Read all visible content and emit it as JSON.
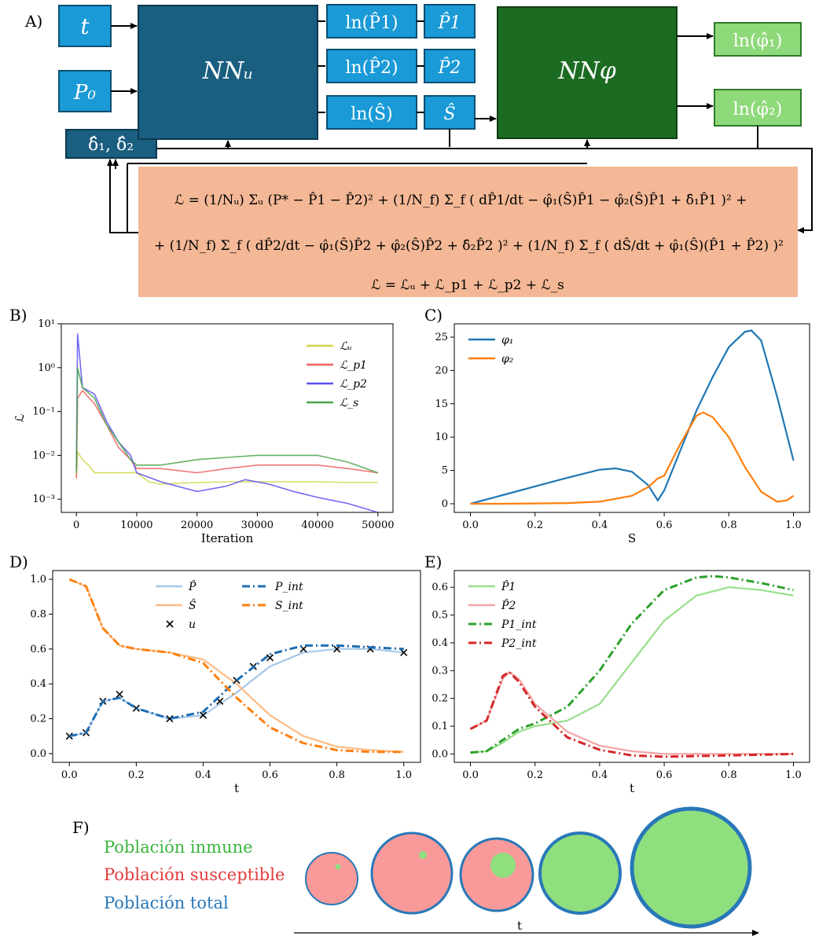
{
  "panels": {
    "A": "A)",
    "B": "B)",
    "C": "C)",
    "D": "D)",
    "E": "E)",
    "F": "F)"
  },
  "diagram": {
    "inputs": {
      "t": "t",
      "p0": "P₀",
      "delta": "δ̂₁, δ̂₂"
    },
    "nn_u": "NNᵤ",
    "nn_phi": "NNφ",
    "outputs_u": [
      "ln(P̂1)",
      "P̂1",
      "ln(P̂2)",
      "P̂2",
      "ln(Ŝ)",
      "Ŝ"
    ],
    "outputs_phi": [
      "ln(φ̂₁)",
      "ln(φ̂₂)"
    ],
    "loss_lines": [
      "ℒ = (1/Nᵤ) Σᵤ (P* − P̂1 − P̂2)² + (1/N_f) Σ_f ( dP̂1/dt − φ̂₁(Ŝ)P̂1 − φ̂₂(Ŝ)P̂1 + δ̂₁P̂1 )² +",
      "+ (1/N_f) Σ_f ( dP̂2/dt − φ̂₁(Ŝ)P̂2 + φ̂₂(Ŝ)P̂2 + δ̂₂P̂2 )² + (1/N_f) Σ_f ( dŜ/dt + φ̂₁(Ŝ)(P̂1 + P̂2) )²",
      "ℒ = ℒᵤ + ℒ_p1 + ℒ_p2 + ℒ_s"
    ],
    "colors": {
      "input_blue": "#1a9ad6",
      "nn_u": "#1a5e80",
      "nn_phi": "#1c6b22",
      "out_green": "#8ed97a",
      "loss_bg": "#f4b896"
    }
  },
  "chart_data": [
    {
      "panel": "B",
      "type": "line",
      "ylabel": "ℒ",
      "xlabel": "Iteration",
      "yscale": "log",
      "ylim": [
        0.0005,
        10
      ],
      "xlim": [
        -2500,
        52500
      ],
      "x_ticks": [
        "0",
        "10000",
        "20000",
        "30000",
        "40000",
        "50000"
      ],
      "y_ticks": [
        "10¹",
        "10⁰",
        "10⁻¹",
        "10⁻²",
        "10⁻³"
      ],
      "legend_position": "top-right",
      "series": [
        {
          "name": "ℒᵤ",
          "color": "#cfd64a",
          "x": [
            0,
            200,
            1000,
            2000,
            3000,
            4000,
            10000,
            12000,
            14000,
            20000,
            25000,
            30000,
            35000,
            40000,
            45000,
            50000
          ],
          "y": [
            0.003,
            0.012,
            0.008,
            0.006,
            0.004,
            0.004,
            0.004,
            0.0025,
            0.0022,
            0.0024,
            0.0025,
            0.0025,
            0.0025,
            0.0025,
            0.0024,
            0.0024
          ]
        },
        {
          "name": "ℒ_p1",
          "color": "#f06060",
          "x": [
            0,
            200,
            1000,
            3000,
            5000,
            7000,
            9000,
            10000,
            14000,
            20000,
            25000,
            30000,
            35000,
            40000,
            45000,
            50000
          ],
          "y": [
            0.003,
            0.2,
            0.3,
            0.15,
            0.05,
            0.015,
            0.008,
            0.005,
            0.005,
            0.004,
            0.005,
            0.006,
            0.006,
            0.006,
            0.005,
            0.004
          ]
        },
        {
          "name": "ℒ_p2",
          "color": "#5a50f0",
          "x": [
            0,
            200,
            1000,
            3000,
            5000,
            7000,
            9000,
            10000,
            14000,
            20000,
            25000,
            28000,
            32000,
            36000,
            40000,
            45000,
            50000
          ],
          "y": [
            0.005,
            6,
            0.35,
            0.25,
            0.06,
            0.02,
            0.01,
            0.004,
            0.0025,
            0.0015,
            0.002,
            0.0028,
            0.0022,
            0.0015,
            0.0011,
            0.0008,
            0.0005
          ]
        },
        {
          "name": "ℒ_s",
          "color": "#4aa54a",
          "x": [
            0,
            200,
            1000,
            3000,
            5000,
            7000,
            9000,
            10000,
            14000,
            20000,
            25000,
            30000,
            35000,
            40000,
            45000,
            50000
          ],
          "y": [
            0.004,
            1.0,
            0.35,
            0.2,
            0.05,
            0.02,
            0.008,
            0.006,
            0.006,
            0.008,
            0.009,
            0.01,
            0.01,
            0.01,
            0.007,
            0.004
          ]
        }
      ]
    },
    {
      "panel": "C",
      "type": "line",
      "xlabel": "S",
      "xlim": [
        -0.05,
        1.05
      ],
      "ylim": [
        -1.3,
        27
      ],
      "x_ticks": [
        "0.0",
        "0.2",
        "0.4",
        "0.6",
        "0.8",
        "1.0"
      ],
      "y_ticks": [
        "0",
        "5",
        "10",
        "15",
        "20",
        "25"
      ],
      "legend_position": "top-left",
      "series": [
        {
          "name": "φ₁",
          "color": "#1f77b4",
          "x": [
            0.0,
            0.1,
            0.2,
            0.3,
            0.4,
            0.45,
            0.5,
            0.55,
            0.58,
            0.6,
            0.65,
            0.7,
            0.75,
            0.8,
            0.85,
            0.87,
            0.9,
            0.95,
            1.0
          ],
          "y": [
            0.0,
            1.3,
            2.6,
            3.9,
            5.1,
            5.3,
            4.8,
            2.8,
            0.5,
            2.0,
            8.0,
            14.0,
            19.0,
            23.5,
            25.8,
            26.0,
            24.5,
            16.0,
            6.5
          ]
        },
        {
          "name": "φ₂",
          "color": "#ff7f0e",
          "x": [
            0.0,
            0.1,
            0.2,
            0.3,
            0.4,
            0.5,
            0.55,
            0.58,
            0.6,
            0.65,
            0.7,
            0.72,
            0.75,
            0.8,
            0.85,
            0.9,
            0.95,
            0.98,
            1.0
          ],
          "y": [
            0.0,
            0.0,
            0.05,
            0.1,
            0.3,
            1.2,
            2.5,
            3.8,
            4.2,
            9.0,
            13.2,
            13.7,
            13.0,
            10.0,
            5.5,
            1.8,
            0.3,
            0.5,
            1.2
          ]
        }
      ]
    },
    {
      "panel": "D",
      "type": "line",
      "xlabel": "t",
      "xlim": [
        -0.05,
        1.05
      ],
      "ylim": [
        -0.05,
        1.05
      ],
      "x_ticks": [
        "0.0",
        "0.2",
        "0.4",
        "0.6",
        "0.8",
        "1.0"
      ],
      "y_ticks": [
        "0.0",
        "0.2",
        "0.4",
        "0.6",
        "0.8",
        "1.0"
      ],
      "legend_position": "top-center",
      "series": [
        {
          "name": "P̂",
          "color": "#a6c8ea",
          "x": [
            0.0,
            0.05,
            0.1,
            0.15,
            0.2,
            0.3,
            0.4,
            0.5,
            0.6,
            0.7,
            0.8,
            0.9,
            1.0
          ],
          "y": [
            0.1,
            0.12,
            0.3,
            0.32,
            0.26,
            0.2,
            0.22,
            0.35,
            0.5,
            0.58,
            0.6,
            0.6,
            0.58
          ]
        },
        {
          "name": "Ŝ",
          "color": "#fdbb84",
          "x": [
            0.0,
            0.05,
            0.1,
            0.15,
            0.2,
            0.3,
            0.4,
            0.5,
            0.6,
            0.7,
            0.8,
            0.9,
            1.0
          ],
          "y": [
            1.0,
            0.96,
            0.72,
            0.62,
            0.6,
            0.58,
            0.54,
            0.4,
            0.22,
            0.1,
            0.04,
            0.02,
            0.01
          ]
        },
        {
          "name": "u",
          "color": "#000000",
          "x": [
            0.0,
            0.05,
            0.1,
            0.15,
            0.2,
            0.3,
            0.4,
            0.45,
            0.5,
            0.55,
            0.6,
            0.7,
            0.8,
            0.9,
            1.0
          ],
          "y": [
            0.1,
            0.12,
            0.3,
            0.34,
            0.26,
            0.2,
            0.22,
            0.3,
            0.42,
            0.5,
            0.55,
            0.6,
            0.6,
            0.6,
            0.58
          ]
        },
        {
          "name": "P_int",
          "color": "#1f6fb4",
          "x": [
            0.0,
            0.05,
            0.1,
            0.15,
            0.2,
            0.3,
            0.4,
            0.5,
            0.6,
            0.7,
            0.8,
            0.9,
            1.0
          ],
          "y": [
            0.1,
            0.12,
            0.3,
            0.32,
            0.26,
            0.2,
            0.24,
            0.42,
            0.57,
            0.62,
            0.62,
            0.61,
            0.6
          ]
        },
        {
          "name": "S_int",
          "color": "#ff7f0e",
          "x": [
            0.0,
            0.05,
            0.1,
            0.15,
            0.2,
            0.3,
            0.4,
            0.5,
            0.6,
            0.7,
            0.8,
            0.9,
            1.0
          ],
          "y": [
            1.0,
            0.96,
            0.72,
            0.62,
            0.6,
            0.58,
            0.52,
            0.32,
            0.15,
            0.06,
            0.02,
            0.01,
            0.01
          ]
        }
      ]
    },
    {
      "panel": "E",
      "type": "line",
      "xlabel": "t",
      "xlim": [
        -0.05,
        1.05
      ],
      "ylim": [
        -0.03,
        0.66
      ],
      "x_ticks": [
        "0.0",
        "0.2",
        "0.4",
        "0.6",
        "0.8",
        "1.0"
      ],
      "y_ticks": [
        "0.0",
        "0.1",
        "0.2",
        "0.3",
        "0.4",
        "0.5",
        "0.6"
      ],
      "legend_position": "top-left",
      "series": [
        {
          "name": "P̂1",
          "color": "#98df8a",
          "x": [
            0.0,
            0.05,
            0.1,
            0.15,
            0.2,
            0.3,
            0.4,
            0.5,
            0.6,
            0.7,
            0.8,
            0.9,
            1.0
          ],
          "y": [
            0.005,
            0.01,
            0.04,
            0.08,
            0.1,
            0.12,
            0.18,
            0.33,
            0.48,
            0.57,
            0.6,
            0.59,
            0.57
          ]
        },
        {
          "name": "P̂2",
          "color": "#f4a3a3",
          "x": [
            0.0,
            0.05,
            0.1,
            0.12,
            0.15,
            0.2,
            0.3,
            0.4,
            0.5,
            0.6,
            0.8,
            1.0
          ],
          "y": [
            0.09,
            0.12,
            0.27,
            0.295,
            0.27,
            0.18,
            0.08,
            0.03,
            0.01,
            0.0,
            0.0,
            0.0
          ]
        },
        {
          "name": "P1_int",
          "color": "#2ca02c",
          "x": [
            0.0,
            0.05,
            0.1,
            0.15,
            0.2,
            0.3,
            0.4,
            0.5,
            0.6,
            0.7,
            0.75,
            0.8,
            0.9,
            1.0
          ],
          "y": [
            0.005,
            0.01,
            0.05,
            0.09,
            0.11,
            0.17,
            0.3,
            0.47,
            0.59,
            0.635,
            0.64,
            0.635,
            0.615,
            0.59
          ]
        },
        {
          "name": "P2_int",
          "color": "#d62728",
          "x": [
            0.0,
            0.05,
            0.1,
            0.12,
            0.15,
            0.2,
            0.3,
            0.4,
            0.5,
            0.6,
            0.8,
            1.0
          ],
          "y": [
            0.09,
            0.12,
            0.28,
            0.295,
            0.26,
            0.17,
            0.06,
            0.015,
            -0.005,
            -0.01,
            -0.005,
            0.0
          ]
        }
      ]
    }
  ],
  "panel_F": {
    "legend": [
      {
        "label": "Población inmune",
        "color": "#3cb43c"
      },
      {
        "label": "Población susceptible",
        "color": "#e03c3c"
      },
      {
        "label": "Población total",
        "color": "#2878b8"
      }
    ],
    "axis_label": "t"
  }
}
